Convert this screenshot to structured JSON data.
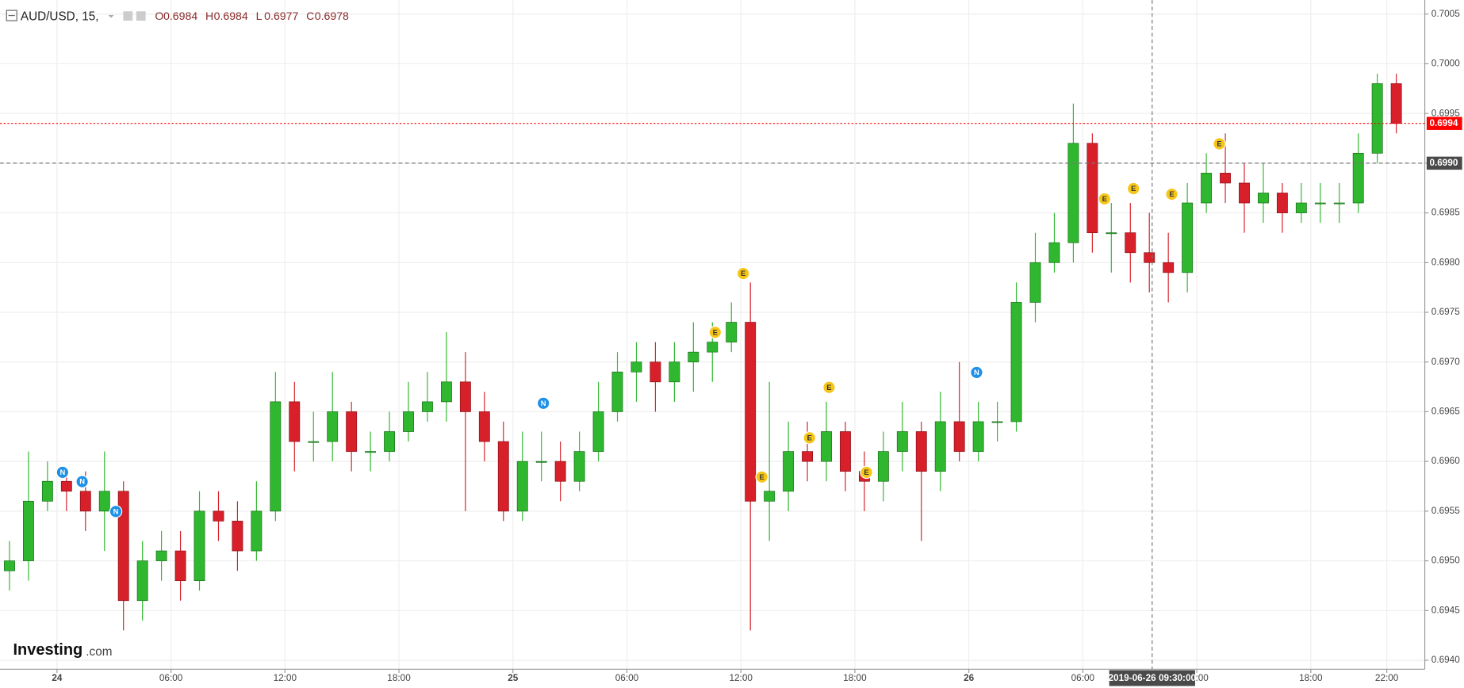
{
  "header": {
    "symbol": "AUD/USD, 15,",
    "ohlc": [
      {
        "label": "O",
        "value": 0.6984
      },
      {
        "label": "H",
        "value": 0.6984
      },
      {
        "label": "L",
        "value": 0.6977
      },
      {
        "label": "C",
        "value": 0.6978
      }
    ]
  },
  "logo": {
    "brand": "Investing",
    "suffix": ".com"
  },
  "crosshair": {
    "time": "2019-06-26 09:30:00",
    "price": {
      "value": 0.699,
      "label": "0.6990"
    }
  },
  "events": [
    "N",
    "N",
    "N",
    "N",
    "E",
    "E",
    "E",
    "E",
    "E",
    "E",
    "N",
    "E",
    "E",
    "E",
    "E"
  ],
  "chart_data": {
    "type": "candlestick",
    "up_color": "#2fb82f",
    "down_color": "#d7202a",
    "last_price": 0.6994,
    "last_color": "#ff0000",
    "xlim": [
      -3,
      72
    ],
    "xticks": [
      {
        "value": 0,
        "label": "24"
      },
      {
        "value": 6,
        "label": "06:00"
      },
      {
        "value": 12,
        "label": "12:00"
      },
      {
        "value": 18,
        "label": "18:00"
      },
      {
        "value": 24,
        "label": "25"
      },
      {
        "value": 30,
        "label": "06:00"
      },
      {
        "value": 36,
        "label": "12:00"
      },
      {
        "value": 42,
        "label": "18:00"
      },
      {
        "value": 48,
        "label": "26"
      },
      {
        "value": 54,
        "label": "06:00"
      },
      {
        "value": 60,
        "label": "12:00"
      },
      {
        "value": 66,
        "label": "18:00"
      },
      {
        "value": 70,
        "label": "22:00"
      }
    ],
    "ylim": [
      0.69391,
      0.70064
    ],
    "yticks": [
      {
        "value": 0.694,
        "label": "0.6940"
      },
      0.6945,
      {
        "value": 0.695,
        "label": "0.6950"
      },
      0.6955,
      {
        "value": 0.696,
        "label": "0.6960"
      },
      0.6965,
      {
        "value": 0.697,
        "label": "0.6970"
      },
      0.6975,
      {
        "value": 0.698,
        "label": "0.6980"
      },
      0.6985,
      {
        "value": 0.699,
        "label": "0.6990"
      },
      0.6995,
      {
        "value": 0.7,
        "label": "0.7000"
      },
      0.7005
    ],
    "grid": true,
    "open": [
      0.6949,
      0.695,
      0.6956,
      0.6958,
      0.6957,
      0.6955,
      0.6957,
      0.6946,
      0.695,
      0.6951,
      0.6948,
      0.6955,
      0.6954,
      0.6951,
      0.6955,
      0.6966,
      0.6962,
      0.6962,
      0.6965,
      0.6961,
      0.6961,
      0.6963,
      0.6965,
      0.6966,
      0.6968,
      0.6965,
      0.6962,
      0.6955,
      0.696,
      0.696,
      0.6958,
      0.6961,
      0.6965,
      0.6969,
      0.697,
      0.6968,
      0.697,
      0.6971,
      0.6972,
      0.6974,
      0.6956,
      0.6957,
      0.6961,
      0.696,
      0.6963,
      0.6959,
      0.6958,
      0.6961,
      0.6963,
      0.6959,
      0.6964,
      0.6961,
      0.6964,
      0.6964,
      0.6976,
      0.698,
      0.6982,
      0.6992,
      0.6983,
      0.6983,
      0.6981,
      0.698,
      0.6979,
      0.6986,
      0.6989,
      0.6988,
      0.6986,
      0.6987,
      0.6985,
      0.6986,
      0.6986,
      0.6986,
      0.6991,
      0.6998
    ],
    "high": [
      0.6952,
      0.6961,
      0.696,
      0.6959,
      0.6959,
      0.6961,
      0.6958,
      0.6952,
      0.6953,
      0.6953,
      0.6957,
      0.6957,
      0.6956,
      0.6958,
      0.6969,
      0.6968,
      0.6965,
      0.6969,
      0.6966,
      0.6963,
      0.6965,
      0.6968,
      0.6969,
      0.6973,
      0.6971,
      0.6967,
      0.6964,
      0.6963,
      0.6963,
      0.6962,
      0.6963,
      0.6968,
      0.6971,
      0.6972,
      0.6972,
      0.6972,
      0.6974,
      0.6974,
      0.6976,
      0.6978,
      0.6968,
      0.6964,
      0.6964,
      0.6966,
      0.6964,
      0.6961,
      0.6963,
      0.6966,
      0.6964,
      0.6967,
      0.697,
      0.6966,
      0.6966,
      0.6978,
      0.6983,
      0.6985,
      0.6996,
      0.6993,
      0.6986,
      0.6986,
      0.6985,
      0.6983,
      0.6988,
      0.6991,
      0.6993,
      0.699,
      0.699,
      0.6988,
      0.6988,
      0.6988,
      0.6988,
      0.6993,
      0.6999,
      0.6999
    ],
    "low": [
      0.6947,
      0.6948,
      0.6955,
      0.6955,
      0.6953,
      0.6951,
      0.6943,
      0.6944,
      0.6948,
      0.6946,
      0.6947,
      0.6952,
      0.6949,
      0.695,
      0.6954,
      0.6959,
      0.696,
      0.696,
      0.6959,
      0.6959,
      0.696,
      0.6962,
      0.6964,
      0.6964,
      0.6955,
      0.696,
      0.6954,
      0.6954,
      0.6958,
      0.6956,
      0.6957,
      0.696,
      0.6964,
      0.6966,
      0.6965,
      0.6966,
      0.6967,
      0.6968,
      0.6971,
      0.6943,
      0.6952,
      0.6955,
      0.6958,
      0.6958,
      0.6957,
      0.6955,
      0.6956,
      0.6959,
      0.6952,
      0.6957,
      0.696,
      0.696,
      0.6962,
      0.6963,
      0.6974,
      0.6979,
      0.698,
      0.6981,
      0.6979,
      0.6978,
      0.6977,
      0.6976,
      0.6977,
      0.6985,
      0.6986,
      0.6983,
      0.6984,
      0.6983,
      0.6984,
      0.6984,
      0.6984,
      0.6985,
      0.699,
      0.6993
    ],
    "close": [
      0.695,
      0.6956,
      0.6958,
      0.6957,
      0.6955,
      0.6957,
      0.6946,
      0.695,
      0.6951,
      0.6948,
      0.6955,
      0.6954,
      0.6951,
      0.6955,
      0.6966,
      0.6962,
      0.6962,
      0.6965,
      0.6961,
      0.6961,
      0.6963,
      0.6965,
      0.6966,
      0.6968,
      0.6965,
      0.6962,
      0.6955,
      0.696,
      0.696,
      0.6958,
      0.6961,
      0.6965,
      0.6969,
      0.697,
      0.6968,
      0.697,
      0.6971,
      0.6972,
      0.6974,
      0.6956,
      0.6957,
      0.6961,
      0.696,
      0.6963,
      0.6959,
      0.6958,
      0.6961,
      0.6963,
      0.6959,
      0.6964,
      0.6961,
      0.6964,
      0.6964,
      0.6976,
      0.698,
      0.6982,
      0.6992,
      0.6983,
      0.6983,
      0.6981,
      0.698,
      0.6979,
      0.6986,
      0.6989,
      0.6988,
      0.6986,
      0.6987,
      0.6985,
      0.6986,
      0.6986,
      0.6986,
      0.6991,
      0.6998,
      0.6994
    ]
  }
}
